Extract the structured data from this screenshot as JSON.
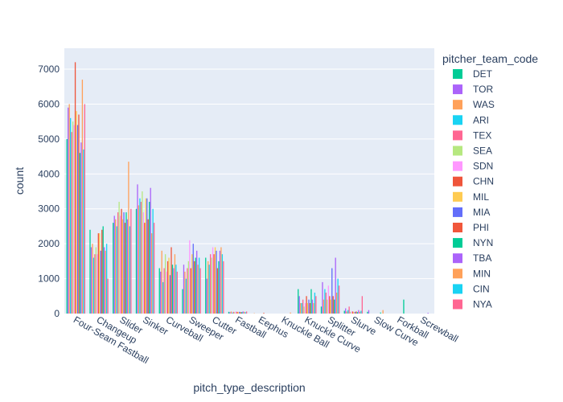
{
  "chart_data": {
    "type": "bar",
    "xlabel": "pitch_type_description",
    "ylabel": "count",
    "ylim": [
      0,
      7600
    ],
    "yticks": [
      0,
      1000,
      2000,
      3000,
      4000,
      5000,
      6000,
      7000
    ],
    "grid": true,
    "legend_title": "pitcher_team_code",
    "legend_position": "right",
    "categories": [
      "Four-Seam Fastball",
      "Changeup",
      "Slider",
      "Sinker",
      "Curveball",
      "Sweeper",
      "Cutter",
      "Fastball",
      "Eephus",
      "Knuckle Ball",
      "Knuckle Curve",
      "Splitter",
      "Slurve",
      "Slow Curve",
      "Forkball",
      "Screwball"
    ],
    "series": [
      {
        "name": "DET",
        "color": "#00cc96",
        "values": [
          5000,
          2400,
          2600,
          3000,
          1300,
          700,
          1600,
          50,
          0,
          0,
          700,
          200,
          80,
          50,
          0,
          0
        ]
      },
      {
        "name": "TOR",
        "color": "#ab63fa",
        "values": [
          5900,
          1900,
          2800,
          3700,
          1200,
          1400,
          1000,
          40,
          0,
          0,
          500,
          900,
          150,
          100,
          0,
          0
        ]
      },
      {
        "name": "WAS",
        "color": "#ffa15a",
        "values": [
          6000,
          2000,
          2700,
          3100,
          1800,
          1200,
          1500,
          60,
          10,
          0,
          300,
          400,
          60,
          0,
          0,
          0
        ]
      },
      {
        "name": "ARI",
        "color": "#19d3f3",
        "values": [
          5600,
          1600,
          2500,
          3300,
          900,
          1000,
          1400,
          30,
          0,
          0,
          300,
          700,
          100,
          0,
          0,
          0
        ]
      },
      {
        "name": "TEX",
        "color": "#ff6692",
        "values": [
          5200,
          1700,
          2900,
          3200,
          1300,
          1300,
          1700,
          50,
          0,
          0,
          400,
          600,
          200,
          0,
          0,
          0
        ]
      },
      {
        "name": "SEA",
        "color": "#b6e880",
        "values": [
          5500,
          1900,
          3200,
          3500,
          1700,
          1500,
          1600,
          40,
          0,
          0,
          200,
          400,
          50,
          0,
          0,
          0
        ]
      },
      {
        "name": "SDN",
        "color": "#ff97ff",
        "values": [
          5400,
          1700,
          2800,
          2900,
          1200,
          2100,
          1900,
          60,
          0,
          0,
          300,
          800,
          60,
          0,
          0,
          0
        ]
      },
      {
        "name": "CHN",
        "color": "#ef553b",
        "values": [
          7200,
          2300,
          3000,
          2600,
          1500,
          1300,
          1700,
          50,
          0,
          0,
          500,
          500,
          60,
          0,
          0,
          0
        ]
      },
      {
        "name": "MIL",
        "color": "#fecb52",
        "values": [
          5800,
          2300,
          2700,
          3300,
          1600,
          1700,
          1900,
          40,
          0,
          0,
          300,
          400,
          40,
          0,
          0,
          0
        ]
      },
      {
        "name": "MIA",
        "color": "#636efa",
        "values": [
          5400,
          1800,
          2900,
          3300,
          1100,
          2000,
          1800,
          50,
          0,
          0,
          400,
          1300,
          50,
          0,
          0,
          0
        ]
      },
      {
        "name": "PHI",
        "color": "#f1573b",
        "values": [
          5700,
          2400,
          2600,
          2700,
          1900,
          1500,
          1300,
          40,
          20,
          0,
          300,
          500,
          60,
          0,
          0,
          0
        ]
      },
      {
        "name": "NYN",
        "color": "#00cc96",
        "values": [
          4600,
          2500,
          2900,
          3200,
          1400,
          1600,
          1500,
          40,
          0,
          0,
          700,
          400,
          40,
          30,
          400,
          0
        ]
      },
      {
        "name": "TBA",
        "color": "#ab63fa",
        "values": [
          4900,
          1900,
          2700,
          3600,
          1300,
          1800,
          1800,
          60,
          0,
          0,
          400,
          1600,
          100,
          0,
          0,
          20
        ]
      },
      {
        "name": "MIN",
        "color": "#ffa15a",
        "values": [
          6700,
          1800,
          4350,
          2300,
          1700,
          1400,
          1900,
          50,
          0,
          30,
          300,
          600,
          50,
          100,
          0,
          0
        ]
      },
      {
        "name": "CIN",
        "color": "#19d3f3",
        "values": [
          4700,
          2000,
          2500,
          3000,
          1400,
          1600,
          1700,
          40,
          0,
          0,
          600,
          1000,
          80,
          0,
          0,
          0
        ]
      },
      {
        "name": "NYA",
        "color": "#ff6692",
        "values": [
          6000,
          1000,
          3000,
          2600,
          1200,
          1300,
          1500,
          60,
          0,
          0,
          500,
          800,
          500,
          0,
          0,
          0
        ]
      }
    ]
  }
}
